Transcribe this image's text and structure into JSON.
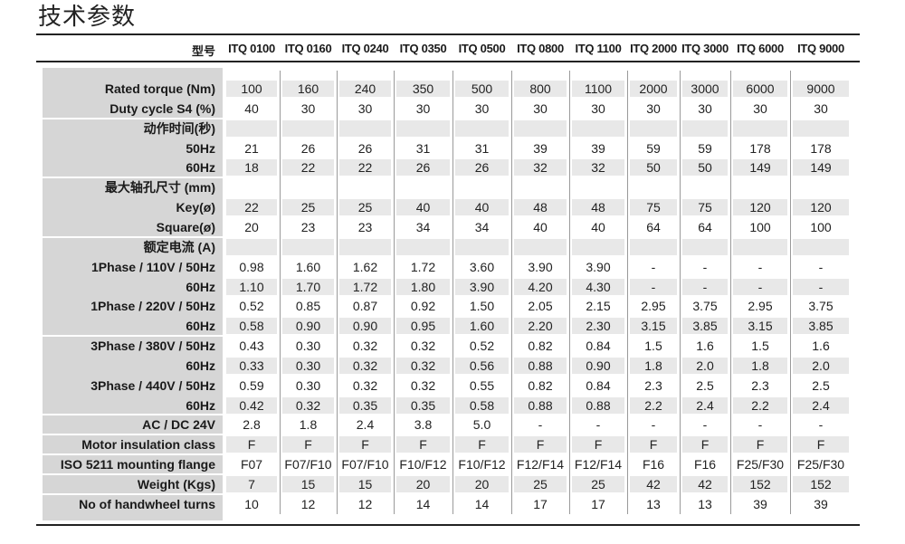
{
  "title": "技术参数",
  "header": {
    "label": "型号",
    "models": [
      "ITQ 0100",
      "ITQ 0160",
      "ITQ 0240",
      "ITQ 0350",
      "ITQ 0500",
      "ITQ 0800",
      "ITQ 1100",
      "ITQ 2000",
      "ITQ 3000",
      "ITQ 6000",
      "ITQ 9000"
    ]
  },
  "rows": [
    {
      "label": "Rated torque (Nm)",
      "values": [
        "100",
        "160",
        "240",
        "350",
        "500",
        "800",
        "1100",
        "2000",
        "3000",
        "6000",
        "9000"
      ]
    },
    {
      "label": "Duty cycle S4 (%)",
      "values": [
        "40",
        "30",
        "30",
        "30",
        "30",
        "30",
        "30",
        "30",
        "30",
        "30",
        "30"
      ]
    },
    {
      "label": "动作时间(秒)",
      "values": [
        "",
        "",
        "",
        "",
        "",
        "",
        "",
        "",
        "",
        "",
        ""
      ]
    },
    {
      "label": "50Hz",
      "values": [
        "21",
        "26",
        "26",
        "31",
        "31",
        "39",
        "39",
        "59",
        "59",
        "178",
        "178"
      ]
    },
    {
      "label": "60Hz",
      "values": [
        "18",
        "22",
        "22",
        "26",
        "26",
        "32",
        "32",
        "50",
        "50",
        "149",
        "149"
      ]
    },
    {
      "label": "最大轴孔尺寸 (mm)",
      "values": [
        "",
        "",
        "",
        "",
        "",
        "",
        "",
        "",
        "",
        "",
        ""
      ]
    },
    {
      "label": "Key(ø)",
      "values": [
        "22",
        "25",
        "25",
        "40",
        "40",
        "48",
        "48",
        "75",
        "75",
        "120",
        "120"
      ]
    },
    {
      "label": "Square(ø)",
      "values": [
        "20",
        "23",
        "23",
        "34",
        "34",
        "40",
        "40",
        "64",
        "64",
        "100",
        "100"
      ]
    },
    {
      "label": "额定电流 (A)",
      "values": [
        "",
        "",
        "",
        "",
        "",
        "",
        "",
        "",
        "",
        "",
        ""
      ]
    },
    {
      "label": "1Phase / 110V / 50Hz",
      "values": [
        "0.98",
        "1.60",
        "1.62",
        "1.72",
        "3.60",
        "3.90",
        "3.90",
        "-",
        "-",
        "-",
        "-"
      ]
    },
    {
      "label": "60Hz",
      "values": [
        "1.10",
        "1.70",
        "1.72",
        "1.80",
        "3.90",
        "4.20",
        "4.30",
        "-",
        "-",
        "-",
        "-"
      ]
    },
    {
      "label": "1Phase / 220V / 50Hz",
      "values": [
        "0.52",
        "0.85",
        "0.87",
        "0.92",
        "1.50",
        "2.05",
        "2.15",
        "2.95",
        "3.75",
        "2.95",
        "3.75"
      ]
    },
    {
      "label": "60Hz",
      "values": [
        "0.58",
        "0.90",
        "0.90",
        "0.95",
        "1.60",
        "2.20",
        "2.30",
        "3.15",
        "3.85",
        "3.15",
        "3.85"
      ]
    },
    {
      "label": "3Phase / 380V / 50Hz",
      "values": [
        "0.43",
        "0.30",
        "0.32",
        "0.32",
        "0.52",
        "0.82",
        "0.84",
        "1.5",
        "1.6",
        "1.5",
        "1.6"
      ]
    },
    {
      "label": "60Hz",
      "values": [
        "0.33",
        "0.30",
        "0.32",
        "0.32",
        "0.56",
        "0.88",
        "0.90",
        "1.8",
        "2.0",
        "1.8",
        "2.0"
      ]
    },
    {
      "label": "3Phase / 440V / 50Hz",
      "values": [
        "0.59",
        "0.30",
        "0.32",
        "0.32",
        "0.55",
        "0.82",
        "0.84",
        "2.3",
        "2.5",
        "2.3",
        "2.5"
      ]
    },
    {
      "label": "60Hz",
      "values": [
        "0.42",
        "0.32",
        "0.35",
        "0.35",
        "0.58",
        "0.88",
        "0.88",
        "2.2",
        "2.4",
        "2.2",
        "2.4"
      ]
    },
    {
      "label": "AC / DC 24V",
      "values": [
        "2.8",
        "1.8",
        "2.4",
        "3.8",
        "5.0",
        "-",
        "-",
        "-",
        "-",
        "-",
        "-"
      ]
    },
    {
      "label": "Motor insulation class",
      "values": [
        "F",
        "F",
        "F",
        "F",
        "F",
        "F",
        "F",
        "F",
        "F",
        "F",
        "F"
      ]
    },
    {
      "label": "ISO 5211 mounting flange",
      "values": [
        "F07",
        "F07/F10",
        "F07/F10",
        "F10/F12",
        "F10/F12",
        "F12/F14",
        "F12/F14",
        "F16",
        "F16",
        "F25/F30",
        "F25/F30"
      ]
    },
    {
      "label": "Weight (Kgs)",
      "values": [
        "7",
        "15",
        "15",
        "20",
        "20",
        "25",
        "25",
        "42",
        "42",
        "152",
        "152"
      ]
    },
    {
      "label": "No of handwheel turns",
      "values": [
        "10",
        "12",
        "12",
        "14",
        "14",
        "17",
        "17",
        "13",
        "13",
        "39",
        "39"
      ]
    }
  ]
}
